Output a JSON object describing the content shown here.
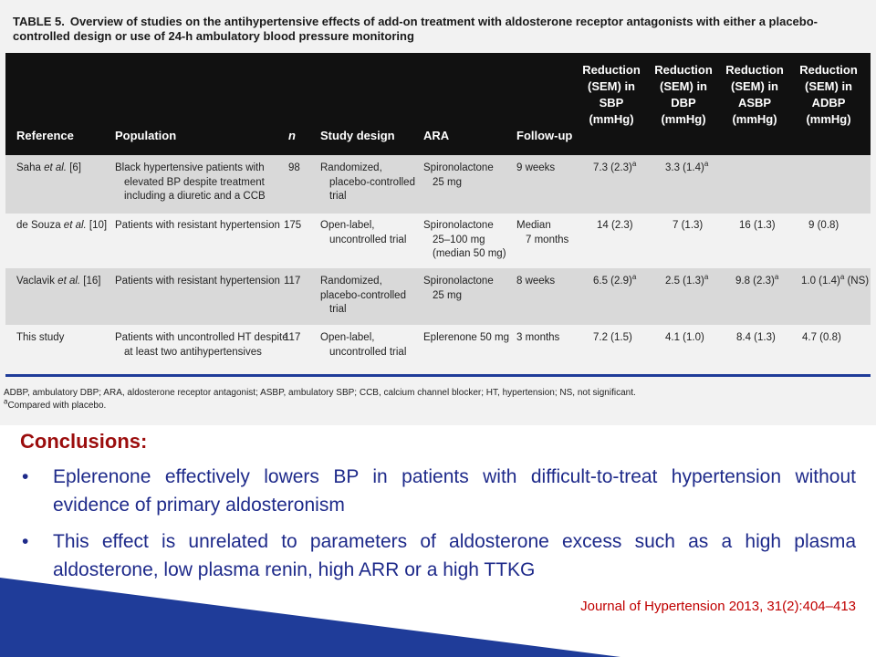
{
  "table": {
    "title_label": "TABLE 5.",
    "title": "Overview of studies on the antihypertensive effects of add-on treatment with aldosterone receptor antagonists with either a placebo-controlled design or use of 24-h ambulatory blood pressure monitoring",
    "headers": {
      "reference": "Reference",
      "population": "Population",
      "n": "n",
      "study_design": "Study design",
      "ara": "ARA",
      "follow_up": "Follow-up",
      "sbp": [
        "Reduction",
        "(SEM) in",
        "SBP",
        "(mmHg)"
      ],
      "dbp": [
        "Reduction",
        "(SEM) in",
        "DBP",
        "(mmHg)"
      ],
      "asbp": [
        "Reduction",
        "(SEM) in",
        "ASBP",
        "(mmHg)"
      ],
      "adbp": [
        "Reduction",
        "(SEM) in",
        "ADBP",
        "(mmHg)"
      ]
    },
    "rows": [
      {
        "reference": [
          "Saha ",
          "et al.",
          " [6]"
        ],
        "population": [
          "Black hypertensive patients with",
          "elevated BP despite treatment",
          "including a diuretic and a CCB"
        ],
        "n": "98",
        "study_design": [
          "Randomized,",
          "placebo-controlled",
          "trial"
        ],
        "ara": [
          "Spironolactone",
          "25 mg"
        ],
        "follow_up": [
          "9 weeks"
        ],
        "sbp": "7.3 (2.3)",
        "sbp_sup": "a",
        "dbp": "3.3 (1.4)",
        "dbp_sup": "a",
        "asbp": "",
        "asbp_sup": "",
        "adbp": "",
        "adbp_sup": ""
      },
      {
        "reference": [
          "de Souza ",
          "et al.",
          " [10]"
        ],
        "population": [
          "Patients with resistant hypertension"
        ],
        "n": "175",
        "study_design": [
          "Open-label,",
          "uncontrolled trial"
        ],
        "ara": [
          "Spironolactone",
          "25–100 mg",
          "(median 50 mg)"
        ],
        "follow_up": [
          "Median",
          "7 months"
        ],
        "sbp": "14 (2.3)",
        "sbp_sup": "",
        "dbp": "7 (1.3)",
        "dbp_sup": "",
        "asbp": "16 (1.3)",
        "asbp_sup": "",
        "adbp": "9 (0.8)",
        "adbp_sup": ""
      },
      {
        "reference": [
          "Vaclavik ",
          "et al.",
          " [16]"
        ],
        "population": [
          "Patients with resistant hypertension"
        ],
        "n": "117",
        "study_design": [
          "Randomized,",
          "placebo-controlled",
          "trial"
        ],
        "ara": [
          "Spironolactone",
          "25 mg"
        ],
        "follow_up": [
          "8 weeks"
        ],
        "sbp": "6.5 (2.9)",
        "sbp_sup": "a",
        "dbp": "2.5 (1.3)",
        "dbp_sup": "a",
        "asbp": "9.8 (2.3)",
        "asbp_sup": "a",
        "adbp": "1.0 (1.4)",
        "adbp_sup": "a",
        "adbp_note": " (NS)"
      },
      {
        "reference": [
          "This study",
          "",
          ""
        ],
        "population": [
          "Patients with uncontrolled HT despite",
          "at least two antihypertensives"
        ],
        "n": "117",
        "study_design": [
          "Open-label,",
          "uncontrolled trial"
        ],
        "ara": [
          "Eplerenone 50 mg"
        ],
        "follow_up": [
          "3 months"
        ],
        "sbp": "7.2 (1.5)",
        "sbp_sup": "",
        "dbp": "4.1 (1.0)",
        "dbp_sup": "",
        "asbp": "8.4 (1.3)",
        "asbp_sup": "",
        "adbp": "4.7 (0.8)",
        "adbp_sup": ""
      }
    ],
    "footnote_abbrev": "ADBP, ambulatory DBP; ARA, aldosterone receptor antagonist; ASBP, ambulatory SBP; CCB, calcium channel blocker; HT, hypertension; NS, not significant.",
    "footnote_a_mark": "a",
    "footnote_a": "Compared with placebo."
  },
  "conclusions": {
    "title": "Conclusions:",
    "bullet_symbol": "•",
    "bullets": [
      "Eplerenone effectively lowers BP in patients with difficult-to-treat hypertension without evidence of primary aldosteronism",
      "This effect is unrelated to parameters of aldosterone excess such as a high plasma aldosterone, low plasma renin, high ARR or a high TTKG"
    ]
  },
  "citation": "Journal of Hypertension 2013, 31(2):404–413",
  "colors": {
    "accent_blue": "#1f3c99",
    "conclusions_red": "#9b0d0d",
    "bullet_text": "#1e2a8a",
    "citation_red": "#c00000"
  }
}
